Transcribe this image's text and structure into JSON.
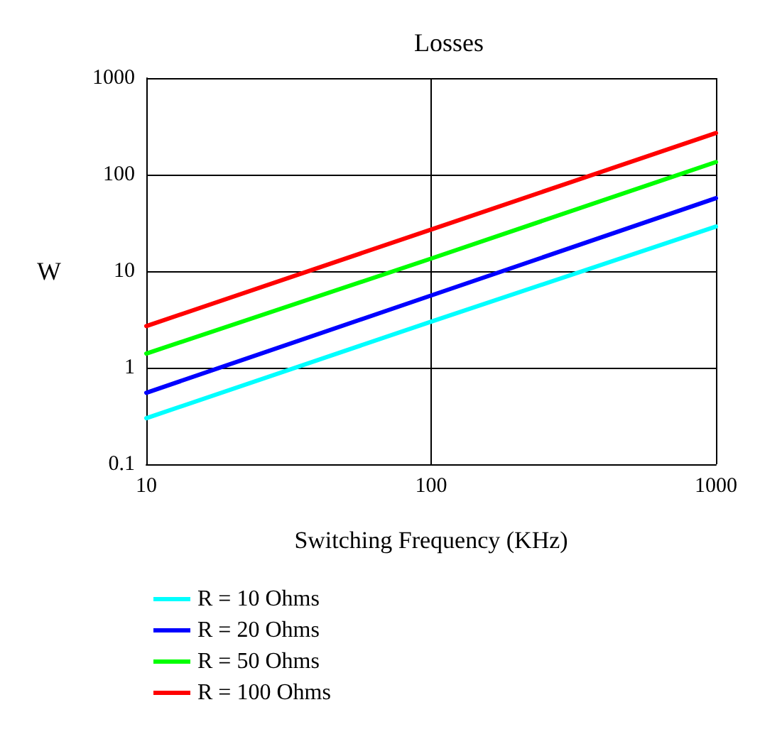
{
  "chart_data": {
    "type": "line",
    "title": "Losses",
    "xlabel": "Switching Frequency (KHz)",
    "ylabel": "W",
    "log": "xy",
    "x": [
      10,
      100,
      1000
    ],
    "series": [
      {
        "name": "R = 10 Ohms",
        "color": "#00ffff",
        "values": [
          0.3,
          3,
          29
        ]
      },
      {
        "name": "R = 20 Ohms",
        "color": "#0000ff",
        "values": [
          0.55,
          5.6,
          57
        ]
      },
      {
        "name": "R = 50 Ohms",
        "color": "#00ff00",
        "values": [
          1.4,
          13.5,
          135
        ]
      },
      {
        "name": "R = 100 Ohms",
        "color": "#ff0000",
        "values": [
          2.7,
          27,
          270
        ]
      }
    ],
    "xlim": [
      10,
      1000
    ],
    "xticks": [
      10,
      100,
      1000
    ],
    "ylim": [
      0.1,
      1000
    ],
    "yticks": [
      0.1,
      1,
      10,
      100,
      1000
    ],
    "grid": true,
    "legend": "bottom left",
    "marker": "none",
    "line_style": "solid"
  }
}
